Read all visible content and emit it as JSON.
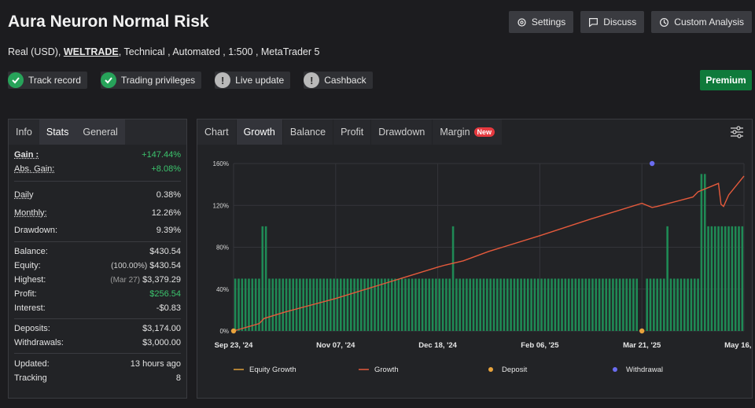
{
  "header": {
    "title": "Aura Neuron Normal Risk",
    "buttons": [
      "Settings",
      "Discuss",
      "Custom Analysis"
    ],
    "sub_account": "Real (USD),",
    "sub_broker": "WELTRADE",
    "sub_rest": ", Technical , Automated , 1:500 , MetaTrader 5",
    "badges": [
      "Track record",
      "Trading privileges",
      "Live update",
      "Cashback"
    ],
    "premium": "Premium"
  },
  "left_tabs": [
    "Info",
    "Stats",
    "General"
  ],
  "stats": {
    "gain_label": "Gain :",
    "gain": "+147.44%",
    "abs_gain_label": "Abs. Gain:",
    "abs_gain": "+8.08%",
    "daily_label": "Daily",
    "daily": "0.38%",
    "monthly_label": "Monthly:",
    "monthly": "12.26%",
    "drawdown_label": "Drawdown:",
    "drawdown": "9.39%",
    "balance_label": "Balance:",
    "balance": "$430.54",
    "equity_label": "Equity:",
    "equity_pct": "(100.00%)",
    "equity": "$430.54",
    "highest_label": "Highest:",
    "highest_date": "(Mar 27)",
    "highest": "$3,379.29",
    "profit_label": "Profit:",
    "profit": "$256.54",
    "interest_label": "Interest:",
    "interest": "-$0.83",
    "deposits_label": "Deposits:",
    "deposits": "$3,174.00",
    "withdrawals_label": "Withdrawals:",
    "withdrawals": "$3,000.00",
    "updated_label": "Updated:",
    "updated": "13 hours ago",
    "tracking_label": "Tracking",
    "tracking": "8"
  },
  "chart_tabs": [
    "Chart",
    "Growth",
    "Balance",
    "Profit",
    "Drawdown",
    "Margin"
  ],
  "new_badge": "New",
  "colors": {
    "green": "#3cc46d",
    "bar": "#1f8a55",
    "growth": "#e55a3c",
    "equity": "#e0a03a",
    "deposit": "#e8a33c",
    "withdrawal": "#6a6cf0"
  },
  "chart_data": {
    "type": "bar+line",
    "title": "Growth",
    "x_ticks": [
      "Sep 23, '24",
      "Nov 07, '24",
      "Dec 18, '24",
      "Feb 06, '25",
      "Mar 21, '25",
      "May 16, '25"
    ],
    "y_ticks": [
      "0%",
      "40%",
      "80%",
      "120%",
      "160%"
    ],
    "ylim": [
      0,
      160
    ],
    "growth_line": [
      [
        0,
        0
      ],
      [
        0.05,
        7
      ],
      [
        0.06,
        12
      ],
      [
        0.1,
        18
      ],
      [
        0.2,
        31
      ],
      [
        0.3,
        46
      ],
      [
        0.4,
        61
      ],
      [
        0.415,
        63
      ],
      [
        0.45,
        67
      ],
      [
        0.5,
        76
      ],
      [
        0.6,
        91
      ],
      [
        0.7,
        107
      ],
      [
        0.8,
        122
      ],
      [
        0.82,
        118
      ],
      [
        0.83,
        119
      ],
      [
        0.9,
        128
      ],
      [
        0.91,
        133
      ],
      [
        0.95,
        141
      ],
      [
        0.955,
        121
      ],
      [
        0.96,
        119
      ],
      [
        0.97,
        130
      ],
      [
        1.0,
        148
      ]
    ],
    "bars_base": 50,
    "bar_spikes": [
      [
        0.06,
        100
      ],
      [
        0.43,
        100
      ],
      [
        0.8,
        0
      ],
      [
        0.85,
        100
      ],
      [
        0.92,
        150
      ],
      [
        0.93,
        100
      ]
    ],
    "deposits": [
      [
        0.0,
        0
      ],
      [
        0.8,
        0
      ]
    ],
    "withdrawals": [
      [
        0.82,
        160
      ]
    ],
    "legend": [
      "Equity Growth",
      "Growth",
      "Deposit",
      "Withdrawal"
    ]
  }
}
